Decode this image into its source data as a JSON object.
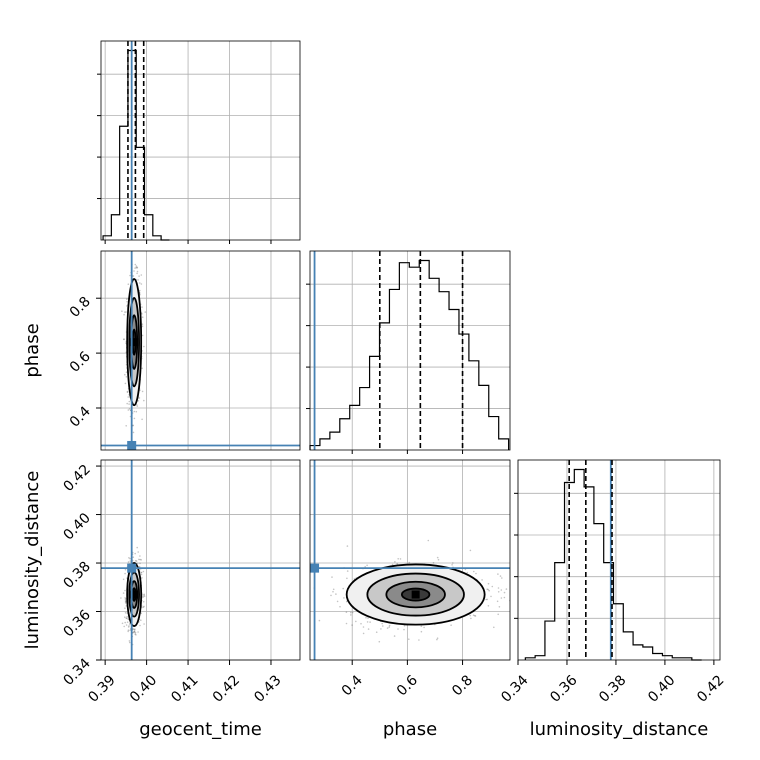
{
  "chart_data": {
    "type": "corner",
    "title": "",
    "parameters": [
      "geocent_time",
      "phase",
      "luminosity_distance"
    ],
    "grid": true,
    "truth_color": "#4682b4",
    "contour_color": "#000000",
    "ranges": {
      "geocent_time": [
        0.389,
        0.437
      ],
      "phase": [
        0.247,
        0.972
      ],
      "luminosity_distance": [
        0.34,
        0.4225
      ]
    },
    "ticks": {
      "geocent_time": [
        0.39,
        0.4,
        0.41,
        0.42,
        0.43
      ],
      "phase": [
        0.4,
        0.6,
        0.8
      ],
      "luminosity_distance": [
        0.34,
        0.36,
        0.38,
        0.4,
        0.42
      ]
    },
    "tick_labels": {
      "geocent_time": [
        "0.39",
        "0.40",
        "0.41",
        "0.42",
        "0.43"
      ],
      "phase": [
        "0.4",
        "0.6",
        "0.8"
      ],
      "luminosity_distance": [
        "0.34",
        "0.36",
        "0.38",
        "0.40",
        "0.42"
      ]
    },
    "truths": {
      "geocent_time": 0.3964,
      "phase": 0.2635,
      "luminosity_distance": 0.3779
    },
    "quantiles": {
      "geocent_time": [
        0.3955,
        0.3973,
        0.3993
      ],
      "phase": [
        0.5,
        0.647,
        0.8
      ],
      "luminosity_distance": [
        0.3609,
        0.3677,
        0.3784
      ]
    },
    "histograms": {
      "geocent_time": {
        "edges": [
          0.3895,
          0.3915,
          0.3935,
          0.3955,
          0.3975,
          0.3995,
          0.4015,
          0.4035,
          0.4055
        ],
        "counts": [
          1,
          6,
          27,
          45,
          22,
          6,
          1,
          0
        ]
      },
      "phase": {
        "edges": [
          0.247,
          0.283,
          0.319,
          0.355,
          0.391,
          0.427,
          0.463,
          0.499,
          0.535,
          0.571,
          0.607,
          0.643,
          0.679,
          0.715,
          0.751,
          0.787,
          0.823,
          0.859,
          0.895,
          0.931,
          0.967
        ],
        "counts": [
          2,
          5,
          8,
          14,
          20,
          28,
          42,
          57,
          72,
          84,
          82,
          85,
          77,
          71,
          63,
          52,
          40,
          29,
          15,
          5
        ]
      },
      "luminosity_distance": {
        "edges": [
          0.343,
          0.347,
          0.351,
          0.355,
          0.359,
          0.363,
          0.367,
          0.371,
          0.375,
          0.379,
          0.383,
          0.387,
          0.391,
          0.395,
          0.399,
          0.403,
          0.407,
          0.411,
          0.415
        ],
        "counts": [
          1,
          2,
          18,
          45,
          82,
          88,
          80,
          63,
          45,
          26,
          13,
          7,
          6,
          3,
          2,
          1,
          1,
          0
        ]
      }
    },
    "joint_modes": {
      "phase_vs_geocent_time": {
        "x": 0.397,
        "y": 0.64
      },
      "luminosity_distance_vs_geocent_time": {
        "x": 0.397,
        "y": 0.367
      },
      "luminosity_distance_vs_phase": {
        "x": 0.63,
        "y": 0.367
      }
    }
  }
}
